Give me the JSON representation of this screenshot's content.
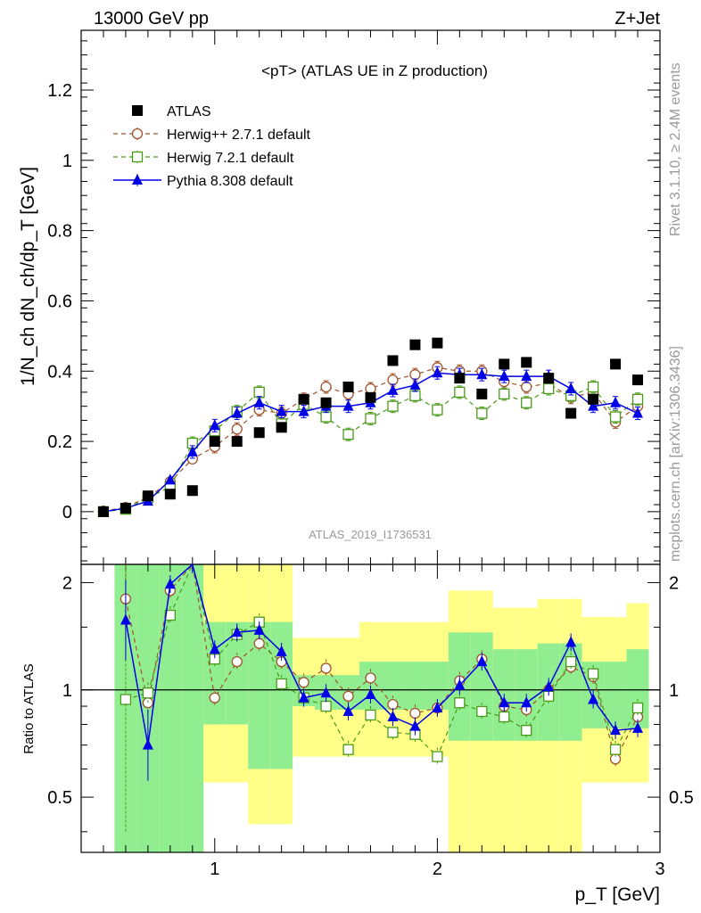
{
  "header": {
    "left": "13000 GeV pp",
    "right": "Z+Jet"
  },
  "side_labels": {
    "top": "Rivet 3.1.10, ≥ 2.4M events",
    "bottom": "mcplots.cern.ch [arXiv:1306.3436]"
  },
  "chart_data": {
    "type": "scatter",
    "title": "<pT> (ATLAS UE in Z production)",
    "analysis_label": "ATLAS_2019_I1736531",
    "xlabel": "p_T [GeV]",
    "ylabel": "1/N_ch dN_ch/dp_T [GeV]",
    "ratio_ylabel": "Ratio to ATLAS",
    "xlim": [
      0.4,
      3.0
    ],
    "ylim": [
      -0.15,
      1.37
    ],
    "ratio_ylim": [
      0.35,
      2.25
    ],
    "x_ticks": [
      "1",
      "2",
      "3"
    ],
    "y_ticks": [
      "0",
      "0.2",
      "0.4",
      "0.6",
      "0.8",
      "1",
      "1.2"
    ],
    "ratio_y_ticks": [
      "0.5",
      "1",
      "2"
    ],
    "legend_position": "top-left",
    "x": [
      0.5,
      0.6,
      0.7,
      0.8,
      0.9,
      1.0,
      1.1,
      1.2,
      1.3,
      1.4,
      1.5,
      1.6,
      1.7,
      1.8,
      1.9,
      2.0,
      2.1,
      2.2,
      2.3,
      2.4,
      2.5,
      2.6,
      2.7,
      2.8,
      2.9
    ],
    "series": [
      {
        "name": "ATLAS",
        "color": "#000000",
        "marker": "filled-square",
        "values": [
          0.0,
          0.01,
          0.045,
          0.05,
          0.06,
          0.2,
          0.2,
          0.225,
          0.24,
          0.32,
          0.31,
          0.355,
          0.325,
          0.43,
          0.475,
          0.48,
          0.38,
          0.335,
          0.42,
          0.425,
          0.38,
          0.28,
          0.32,
          0.42,
          0.375
        ]
      },
      {
        "name": "Herwig++ 2.7.1 default",
        "color": "#a0522d",
        "marker": "open-circle",
        "values": [
          0.002,
          0.012,
          0.042,
          0.085,
          0.15,
          0.185,
          0.235,
          0.29,
          0.28,
          0.32,
          0.355,
          0.335,
          0.35,
          0.375,
          0.39,
          0.41,
          0.4,
          0.4,
          0.37,
          0.355,
          0.365,
          0.325,
          0.34,
          0.255,
          0.3
        ]
      },
      {
        "name": "Herwig 7.2.1 default",
        "color": "#4a9a1a",
        "marker": "open-square",
        "values": [
          0.0,
          0.007,
          0.04,
          0.07,
          0.195,
          0.23,
          0.285,
          0.34,
          0.25,
          0.305,
          0.27,
          0.22,
          0.265,
          0.3,
          0.33,
          0.29,
          0.34,
          0.28,
          0.335,
          0.31,
          0.35,
          0.33,
          0.355,
          0.27,
          0.32
        ]
      },
      {
        "name": "Pythia 8.308 default",
        "color": "#0000e6",
        "marker": "filled-triangle",
        "values": [
          0.0,
          0.01,
          0.03,
          0.09,
          0.17,
          0.245,
          0.28,
          0.31,
          0.285,
          0.285,
          0.3,
          0.3,
          0.31,
          0.345,
          0.36,
          0.395,
          0.39,
          0.39,
          0.385,
          0.385,
          0.385,
          0.35,
          0.3,
          0.31,
          0.28
        ]
      }
    ],
    "ratio_series": [
      {
        "name": "Herwig++ 2.7.1 default",
        "values": [
          null,
          1.8,
          0.92,
          1.9,
          2.6,
          0.95,
          1.2,
          1.35,
          1.2,
          1.05,
          1.15,
          0.96,
          1.08,
          0.91,
          0.86,
          0.89,
          1.06,
          1.22,
          0.9,
          0.88,
          1.0,
          1.16,
          1.09,
          0.64,
          0.84
        ]
      },
      {
        "name": "Herwig 7.2.1 default",
        "values": [
          null,
          0.94,
          0.98,
          1.62,
          2.55,
          1.22,
          1.43,
          1.55,
          1.04,
          0.95,
          0.9,
          0.68,
          0.85,
          0.76,
          0.75,
          0.65,
          0.92,
          0.87,
          0.84,
          0.77,
          0.96,
          1.2,
          1.11,
          0.68,
          0.89
        ]
      },
      {
        "name": "Pythia 8.308 default",
        "values": [
          null,
          1.57,
          0.7,
          1.98,
          2.5,
          1.3,
          1.45,
          1.47,
          1.28,
          0.95,
          0.98,
          0.87,
          0.97,
          0.84,
          0.79,
          0.89,
          1.03,
          1.2,
          0.92,
          0.92,
          1.02,
          1.36,
          0.94,
          0.77,
          0.78
        ]
      }
    ],
    "ratio_bands": {
      "inner_lower": [
        null,
        0.35,
        0.35,
        0.35,
        0.35,
        0.8,
        0.8,
        0.6,
        0.6,
        0.9,
        0.88,
        0.88,
        0.88,
        0.88,
        0.88,
        0.88,
        0.72,
        0.72,
        0.72,
        0.72,
        0.72,
        0.72,
        0.78,
        0.78,
        0.78
      ],
      "inner_upper": [
        null,
        2.25,
        2.25,
        2.25,
        2.25,
        1.55,
        1.55,
        1.55,
        1.55,
        1.1,
        1.1,
        1.1,
        1.2,
        1.2,
        1.2,
        1.2,
        1.45,
        1.45,
        1.3,
        1.3,
        1.35,
        1.35,
        1.2,
        1.2,
        1.3
      ],
      "outer_lower": [
        null,
        0.35,
        0.35,
        0.35,
        0.35,
        0.55,
        0.55,
        0.42,
        0.42,
        0.65,
        0.65,
        0.65,
        0.65,
        0.65,
        0.65,
        0.65,
        0.35,
        0.35,
        0.35,
        0.35,
        0.35,
        0.35,
        0.55,
        0.55,
        0.55
      ],
      "outer_upper": [
        null,
        2.25,
        2.25,
        2.25,
        2.25,
        2.25,
        2.25,
        2.25,
        2.25,
        1.4,
        1.4,
        1.4,
        1.55,
        1.55,
        1.55,
        1.55,
        1.9,
        1.9,
        1.7,
        1.7,
        1.8,
        1.8,
        1.6,
        1.6,
        1.75
      ],
      "colors": {
        "inner": "#90ee90",
        "outer": "#ffff88"
      }
    }
  }
}
